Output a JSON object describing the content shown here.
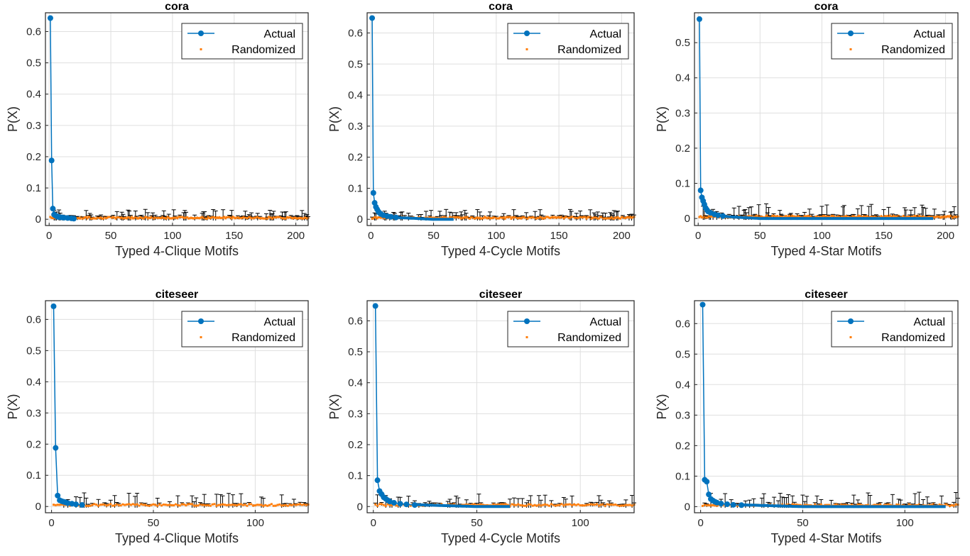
{
  "legend_labels": {
    "actual": "Actual",
    "randomized": "Randomized"
  },
  "colors": {
    "actual": "#0072BD",
    "randomized": "#FF7F0E",
    "errorbar": "#000000",
    "grid": "#DFDFDF"
  },
  "chart_data": [
    {
      "type": "line",
      "title": "cora",
      "xlabel": "Typed 4-Clique Motifs",
      "ylabel": "P(X)",
      "xlim": [
        -3,
        210
      ],
      "ylim": [
        -0.02,
        0.66
      ],
      "xticks": [
        0,
        50,
        100,
        150,
        200
      ],
      "xtick_labels": [
        "0",
        "50",
        "100",
        "150",
        "200"
      ],
      "yticks": [
        0,
        0.1,
        0.2,
        0.3,
        0.4,
        0.5,
        0.6
      ],
      "ytick_labels": [
        "0",
        "0.1",
        "0.2",
        "0.3",
        "0.4",
        "0.5",
        "0.6"
      ],
      "grid": true,
      "legend_position": "top-right",
      "series": [
        {
          "name": "Actual",
          "x": [
            1,
            2,
            3,
            4,
            5,
            6,
            7,
            8,
            10,
            12,
            15,
            18,
            20
          ],
          "values": [
            0.643,
            0.188,
            0.034,
            0.015,
            0.012,
            0.01,
            0.008,
            0.007,
            0.006,
            0.005,
            0.004,
            0.003,
            0.002
          ]
        },
        {
          "name": "Randomized",
          "x_range": [
            1,
            210
          ],
          "values": [
            0.0,
            0.03
          ],
          "error_max": 0.03
        }
      ]
    },
    {
      "type": "line",
      "title": "cora",
      "xlabel": "Typed 4-Cycle Motifs",
      "ylabel": "P(X)",
      "xlim": [
        -3,
        210
      ],
      "ylim": [
        -0.02,
        0.665
      ],
      "xticks": [
        0,
        50,
        100,
        150,
        200
      ],
      "xtick_labels": [
        "0",
        "50",
        "100",
        "150",
        "200"
      ],
      "yticks": [
        0,
        0.1,
        0.2,
        0.3,
        0.4,
        0.5,
        0.6
      ],
      "ytick_labels": [
        "0",
        "0.1",
        "0.2",
        "0.3",
        "0.4",
        "0.5",
        "0.6"
      ],
      "grid": true,
      "legend_position": "top-right",
      "series": [
        {
          "name": "Actual",
          "x": [
            1,
            2,
            3,
            4,
            5,
            6,
            7,
            8,
            10,
            13,
            16,
            20
          ],
          "values": [
            0.648,
            0.085,
            0.053,
            0.04,
            0.032,
            0.025,
            0.02,
            0.017,
            0.013,
            0.01,
            0.008,
            0.006
          ]
        },
        {
          "name": "Randomized",
          "x_range": [
            1,
            210
          ],
          "values": [
            0.0,
            0.03
          ],
          "error_max": 0.03
        }
      ]
    },
    {
      "type": "line",
      "title": "cora",
      "xlabel": "Typed 4-Star Motifs",
      "ylabel": "P(X)",
      "xlim": [
        -3,
        210
      ],
      "ylim": [
        -0.02,
        0.585
      ],
      "xticks": [
        0,
        50,
        100,
        150,
        200
      ],
      "xtick_labels": [
        "0",
        "50",
        "100",
        "150",
        "200"
      ],
      "yticks": [
        0,
        0.1,
        0.2,
        0.3,
        0.4,
        0.5
      ],
      "ytick_labels": [
        "0",
        "0.1",
        "0.2",
        "0.3",
        "0.4",
        "0.5"
      ],
      "grid": true,
      "legend_position": "top-right",
      "series": [
        {
          "name": "Actual",
          "x": [
            1,
            2,
            3,
            4,
            5,
            6,
            7,
            8,
            10,
            13,
            16,
            20
          ],
          "values": [
            0.567,
            0.08,
            0.06,
            0.05,
            0.04,
            0.03,
            0.025,
            0.02,
            0.016,
            0.012,
            0.009,
            0.007
          ]
        },
        {
          "name": "Randomized",
          "x_range": [
            1,
            210
          ],
          "values": [
            0.0,
            0.04
          ],
          "error_max": 0.04
        }
      ]
    },
    {
      "type": "line",
      "title": "citeseer",
      "xlabel": "Typed 4-Clique Motifs",
      "ylabel": "P(X)",
      "xlim": [
        -3,
        126
      ],
      "ylim": [
        -0.02,
        0.66
      ],
      "xticks": [
        0,
        50,
        100
      ],
      "xtick_labels": [
        "0",
        "50",
        "100"
      ],
      "yticks": [
        0,
        0.1,
        0.2,
        0.3,
        0.4,
        0.5,
        0.6
      ],
      "ytick_labels": [
        "0",
        "0.1",
        "0.2",
        "0.3",
        "0.4",
        "0.5",
        "0.6"
      ],
      "grid": true,
      "legend_position": "top-right",
      "series": [
        {
          "name": "Actual",
          "x": [
            1,
            2,
            3,
            4,
            5,
            6,
            7,
            8,
            10,
            12,
            15
          ],
          "values": [
            0.642,
            0.188,
            0.035,
            0.02,
            0.017,
            0.015,
            0.013,
            0.011,
            0.009,
            0.007,
            0.005
          ]
        },
        {
          "name": "Randomized",
          "x_range": [
            1,
            126
          ],
          "values": [
            0.0,
            0.045
          ],
          "error_max": 0.045
        }
      ]
    },
    {
      "type": "line",
      "title": "citeseer",
      "xlabel": "Typed 4-Cycle Motifs",
      "ylabel": "P(X)",
      "xlim": [
        -3,
        126
      ],
      "ylim": [
        -0.02,
        0.665
      ],
      "xticks": [
        0,
        50,
        100
      ],
      "xtick_labels": [
        "0",
        "50",
        "100"
      ],
      "yticks": [
        0,
        0.1,
        0.2,
        0.3,
        0.4,
        0.5,
        0.6
      ],
      "ytick_labels": [
        "0",
        "0.1",
        "0.2",
        "0.3",
        "0.4",
        "0.5",
        "0.6"
      ],
      "grid": true,
      "legend_position": "top-right",
      "series": [
        {
          "name": "Actual",
          "x": [
            1,
            2,
            3,
            4,
            5,
            6,
            7,
            8,
            10,
            13,
            16,
            20
          ],
          "values": [
            0.648,
            0.085,
            0.05,
            0.04,
            0.03,
            0.025,
            0.02,
            0.016,
            0.012,
            0.009,
            0.007,
            0.005
          ]
        },
        {
          "name": "Randomized",
          "x_range": [
            1,
            126
          ],
          "values": [
            0.0,
            0.04
          ],
          "error_max": 0.04
        }
      ]
    },
    {
      "type": "line",
      "title": "citeseer",
      "xlabel": "Typed 4-Star Motifs",
      "ylabel": "P(X)",
      "xlim": [
        -3,
        126
      ],
      "ylim": [
        -0.02,
        0.675
      ],
      "xticks": [
        0,
        50,
        100
      ],
      "xtick_labels": [
        "0",
        "50",
        "100"
      ],
      "yticks": [
        0,
        0.1,
        0.2,
        0.3,
        0.4,
        0.5,
        0.6
      ],
      "ytick_labels": [
        "0",
        "0.1",
        "0.2",
        "0.3",
        "0.4",
        "0.5",
        "0.6"
      ],
      "grid": true,
      "legend_position": "top-right",
      "series": [
        {
          "name": "Actual",
          "x": [
            1,
            2,
            3,
            4,
            5,
            6,
            7,
            8,
            10,
            13,
            16,
            20
          ],
          "values": [
            0.662,
            0.088,
            0.082,
            0.04,
            0.025,
            0.02,
            0.016,
            0.013,
            0.01,
            0.008,
            0.006,
            0.005
          ]
        },
        {
          "name": "Randomized",
          "x_range": [
            1,
            126
          ],
          "values": [
            0.0,
            0.045
          ],
          "error_max": 0.045
        }
      ]
    }
  ]
}
